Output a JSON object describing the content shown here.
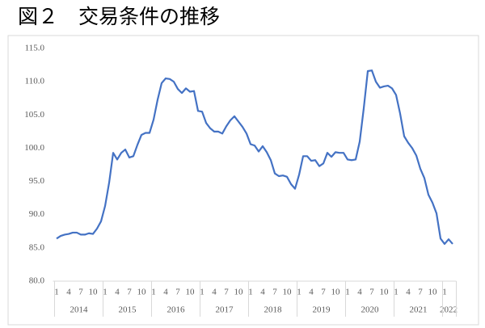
{
  "chart_data": {
    "type": "line",
    "title": "図２　交易条件の推移",
    "categories": [
      "1",
      null,
      null,
      "4",
      null,
      null,
      "7",
      null,
      null,
      "10",
      null,
      null,
      "1",
      null,
      null,
      "4",
      null,
      null,
      "7",
      null,
      null,
      "10",
      null,
      null,
      "1",
      null,
      null,
      "4",
      null,
      null,
      "7",
      null,
      null,
      "10",
      null,
      null,
      "1",
      null,
      null,
      "4",
      null,
      null,
      "7",
      null,
      null,
      "10",
      null,
      null,
      "1",
      null,
      null,
      "4",
      null,
      null,
      "7",
      null,
      null,
      "10",
      null,
      null,
      "1",
      null,
      null,
      "4",
      null,
      null,
      "7",
      null,
      null,
      "10",
      null,
      null,
      "1",
      null,
      null,
      "4",
      null,
      null,
      "7",
      null,
      null,
      "10",
      null,
      null,
      "1",
      null,
      null,
      "4",
      null,
      null,
      "7",
      null,
      null,
      "10",
      null,
      null,
      "1",
      null,
      null
    ],
    "years": [
      "2014",
      "2015",
      "2016",
      "2017",
      "2018",
      "2019",
      "2020",
      "2021",
      "2022"
    ],
    "series": [
      {
        "color": "#4472c4",
        "values": [
          86.4,
          86.8,
          87.0,
          87.1,
          87.3,
          87.3,
          87.0,
          87.0,
          87.2,
          87.1,
          87.9,
          89.0,
          91.3,
          94.8,
          99.3,
          98.3,
          99.3,
          99.8,
          98.6,
          98.8,
          100.5,
          102.0,
          102.3,
          102.3,
          104.3,
          107.3,
          109.8,
          110.5,
          110.4,
          110.0,
          108.9,
          108.3,
          109.0,
          108.5,
          108.6,
          105.6,
          105.5,
          103.8,
          103.0,
          102.5,
          102.5,
          102.2,
          103.3,
          104.2,
          104.8,
          104.0,
          103.2,
          102.2,
          100.6,
          100.4,
          99.5,
          100.3,
          99.4,
          98.2,
          96.2,
          95.8,
          95.9,
          95.7,
          94.6,
          93.9,
          96.0,
          98.8,
          98.8,
          98.1,
          98.2,
          97.3,
          97.7,
          99.3,
          98.7,
          99.4,
          99.3,
          99.3,
          98.3,
          98.2,
          98.3,
          101.0,
          106.0,
          111.6,
          111.7,
          110.0,
          109.1,
          109.3,
          109.4,
          109.0,
          108.0,
          105.2,
          101.8,
          100.8,
          100.0,
          98.9,
          96.9,
          95.5,
          93.0,
          91.8,
          90.2,
          86.4,
          85.6,
          86.3,
          85.6
        ]
      }
    ],
    "ylim": [
      80,
      115
    ],
    "yticks": [
      {
        "value": 80,
        "label": "80.0"
      },
      {
        "value": 85,
        "label": "85.0"
      },
      {
        "value": 90,
        "label": "90.0"
      },
      {
        "value": 95,
        "label": "95.0"
      },
      {
        "value": 100,
        "label": "100.0"
      },
      {
        "value": 105,
        "label": "105.0"
      },
      {
        "value": 110,
        "label": "110.0"
      },
      {
        "value": 115,
        "label": "115.0"
      }
    ],
    "grid": false
  }
}
